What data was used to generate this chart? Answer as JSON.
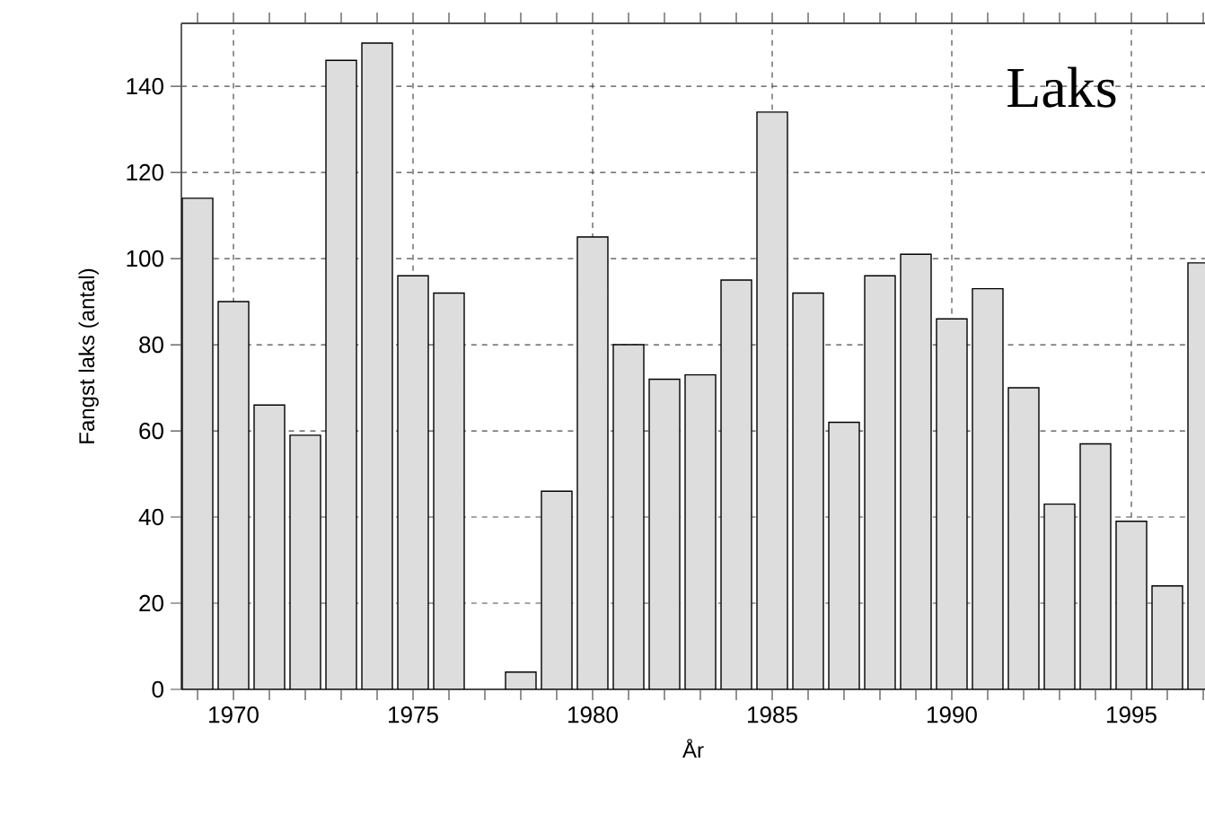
{
  "chart_data": {
    "type": "bar",
    "xlabel": "År",
    "ylabel": "Fangst laks (antal)",
    "annotations": [
      "Laks"
    ],
    "x": [
      1969,
      1970,
      1971,
      1972,
      1973,
      1974,
      1975,
      1976,
      1977,
      1978,
      1979,
      1980,
      1981,
      1982,
      1983,
      1984,
      1985,
      1986,
      1987,
      1988,
      1989,
      1990,
      1991,
      1992,
      1993,
      1994,
      1995,
      1996,
      1997
    ],
    "values": [
      114,
      90,
      66,
      59,
      146,
      150,
      96,
      92,
      null,
      4,
      46,
      105,
      80,
      72,
      73,
      95,
      134,
      92,
      62,
      96,
      101,
      86,
      93,
      70,
      43,
      57,
      39,
      24,
      99
    ],
    "color": "#dddddd",
    "xlim": [
      1968.55,
      1997.05
    ],
    "xticks": [
      {
        "value": 1969,
        "label": null
      },
      1970,
      {
        "value": 1971,
        "label": null
      },
      {
        "value": 1972,
        "label": null
      },
      {
        "value": 1973,
        "label": null
      },
      {
        "value": 1974,
        "label": null
      },
      1975,
      {
        "value": 1976,
        "label": null
      },
      {
        "value": 1977,
        "label": null
      },
      {
        "value": 1978,
        "label": null
      },
      {
        "value": 1979,
        "label": null
      },
      1980,
      {
        "value": 1981,
        "label": null
      },
      {
        "value": 1982,
        "label": null
      },
      {
        "value": 1983,
        "label": null
      },
      {
        "value": 1984,
        "label": null
      },
      1985,
      {
        "value": 1986,
        "label": null
      },
      {
        "value": 1987,
        "label": null
      },
      {
        "value": 1988,
        "label": null
      },
      {
        "value": 1989,
        "label": null
      },
      1990,
      {
        "value": 1991,
        "label": null
      },
      {
        "value": 1992,
        "label": null
      },
      {
        "value": 1993,
        "label": null
      },
      {
        "value": 1994,
        "label": null
      },
      1995,
      {
        "value": 1996,
        "label": null
      },
      {
        "value": 1997,
        "label": null
      }
    ],
    "ylim": [
      0,
      154.6
    ],
    "yticks": [
      0,
      20,
      40,
      60,
      80,
      100,
      120,
      140
    ],
    "grid": true
  }
}
